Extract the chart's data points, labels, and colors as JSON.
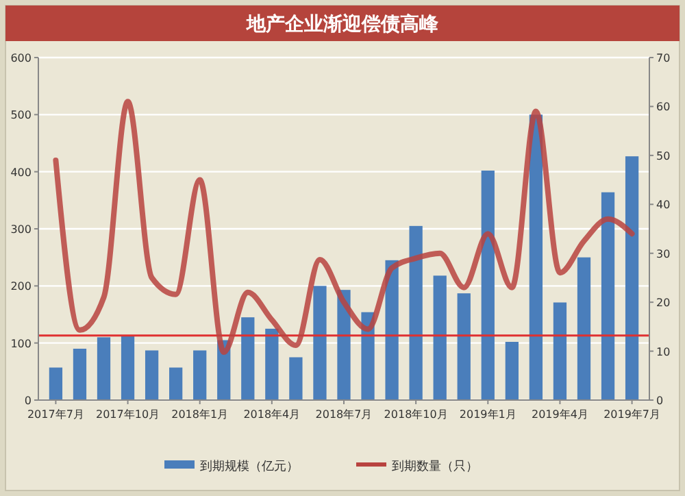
{
  "chart_data": {
    "type": "bar",
    "title": "地产企业渐迎偿债高峰",
    "categories": [
      "2017年7月",
      null,
      null,
      "2017年10月",
      null,
      null,
      "2018年1月",
      null,
      null,
      "2018年4月",
      null,
      null,
      "2018年7月",
      null,
      null,
      "2018年10月",
      null,
      null,
      "2019年1月",
      null,
      null,
      "2019年4月",
      null,
      null,
      "2019年7月"
    ],
    "series": [
      {
        "name": "到期规模（亿元）",
        "color": "#4a7ebb",
        "values": [
          57,
          90,
          110,
          112,
          87,
          57,
          87,
          105,
          145,
          125,
          75,
          200,
          193,
          154,
          245,
          305,
          218,
          187,
          402,
          102,
          500,
          171,
          250,
          364,
          427
        ]
      },
      {
        "name": "到期数量（只）",
        "type": "line",
        "axis": "y2",
        "color": "#b8433f",
        "values": [
          49,
          14.3,
          21,
          61,
          25,
          21.6,
          45,
          9.8,
          22,
          16.4,
          11.2,
          28.7,
          20,
          14.5,
          27,
          29,
          30,
          23,
          34,
          23,
          59,
          26,
          32.5,
          37,
          34
        ]
      }
    ],
    "ylim": [
      0,
      600
    ],
    "yticks": [
      0,
      100,
      200,
      300,
      400,
      500,
      600
    ],
    "y2lim": [
      0,
      70
    ],
    "y2ticks": [
      0,
      10,
      20,
      30,
      40,
      50,
      60,
      70
    ],
    "ref_lines": [
      {
        "axis": "y",
        "value": 113,
        "color": "#e03030"
      }
    ],
    "grid": "y",
    "legend": "bottom"
  }
}
